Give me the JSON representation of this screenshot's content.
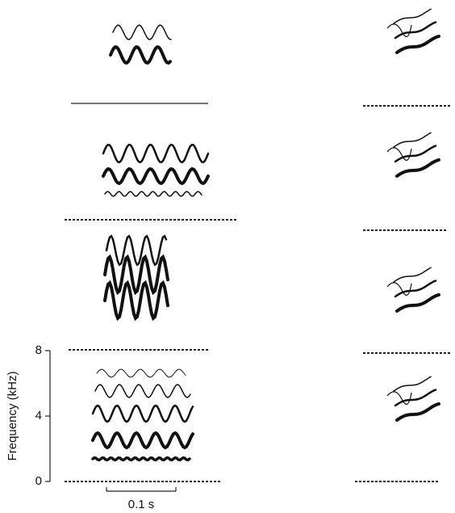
{
  "axis": {
    "label": "Frequency (kHz)",
    "ticks": [
      8,
      4,
      0
    ]
  },
  "scale_bar": {
    "label": "0.1 s"
  }
}
